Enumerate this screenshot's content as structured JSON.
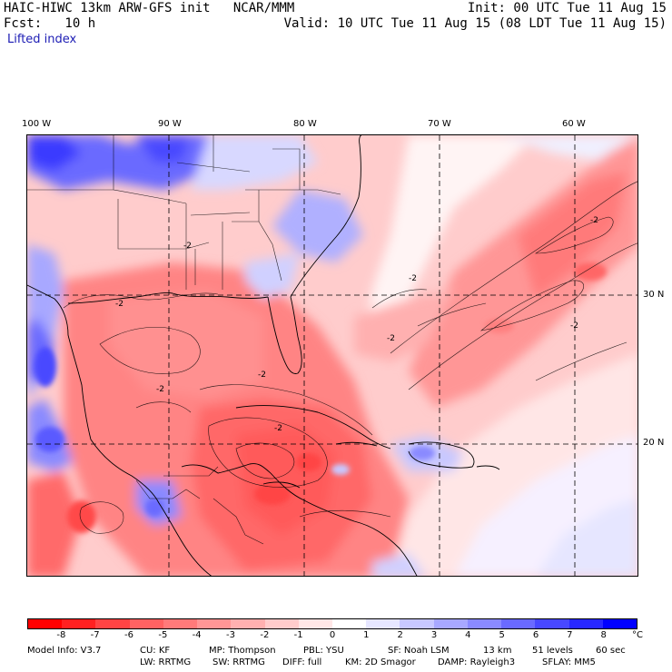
{
  "header": {
    "title": "HAIC-HIWC 13km ARW-GFS init   NCAR/MMM",
    "fcst": "Fcst:   10 h",
    "init": "Init: 00 UTC Tue 11 Aug 15",
    "valid": "Valid: 10 UTC Tue 11 Aug 15 (08 LDT Tue 11 Aug 15)",
    "field": "Lifted index"
  },
  "axes": {
    "lon_labels": [
      "100 W",
      "90 W",
      "80 W",
      "70 W",
      "60 W"
    ],
    "lat_labels": [
      "30 N",
      "20 N"
    ]
  },
  "contour_labels": [
    "-2",
    "-2",
    "-2",
    "-2",
    "-2",
    "-2",
    "-2",
    "-2",
    "-2"
  ],
  "colorbar": {
    "labels": [
      "-8",
      "-7",
      "-6",
      "-5",
      "-4",
      "-3",
      "-2",
      "-1",
      "0",
      "1",
      "2",
      "3",
      "4",
      "5",
      "6",
      "7",
      "8"
    ],
    "unit": "°C",
    "colors": [
      "#ff0000",
      "#ff2121",
      "#ff4444",
      "#ff6262",
      "#ff7a7a",
      "#ff9696",
      "#ffb0b0",
      "#ffcccc",
      "#ffe6e6",
      "#ffffff",
      "#e6e6ff",
      "#c8c8ff",
      "#a8a8ff",
      "#8a8aff",
      "#6a6aff",
      "#4848ff",
      "#2828ff",
      "#0000ff"
    ]
  },
  "model_info": {
    "line1": [
      "Model Info: V3.7",
      "CU: KF",
      "MP: Thompson",
      "PBL: YSU",
      "SF: Noah LSM",
      "13 km",
      "51 levels",
      "60 sec"
    ],
    "line2": [
      "LW: RRTMG",
      "SW: RRTMG",
      "DIFF: full",
      "KM: 2D Smagor",
      "DAMP: Rayleigh3",
      "SFLAY: MM5"
    ]
  }
}
